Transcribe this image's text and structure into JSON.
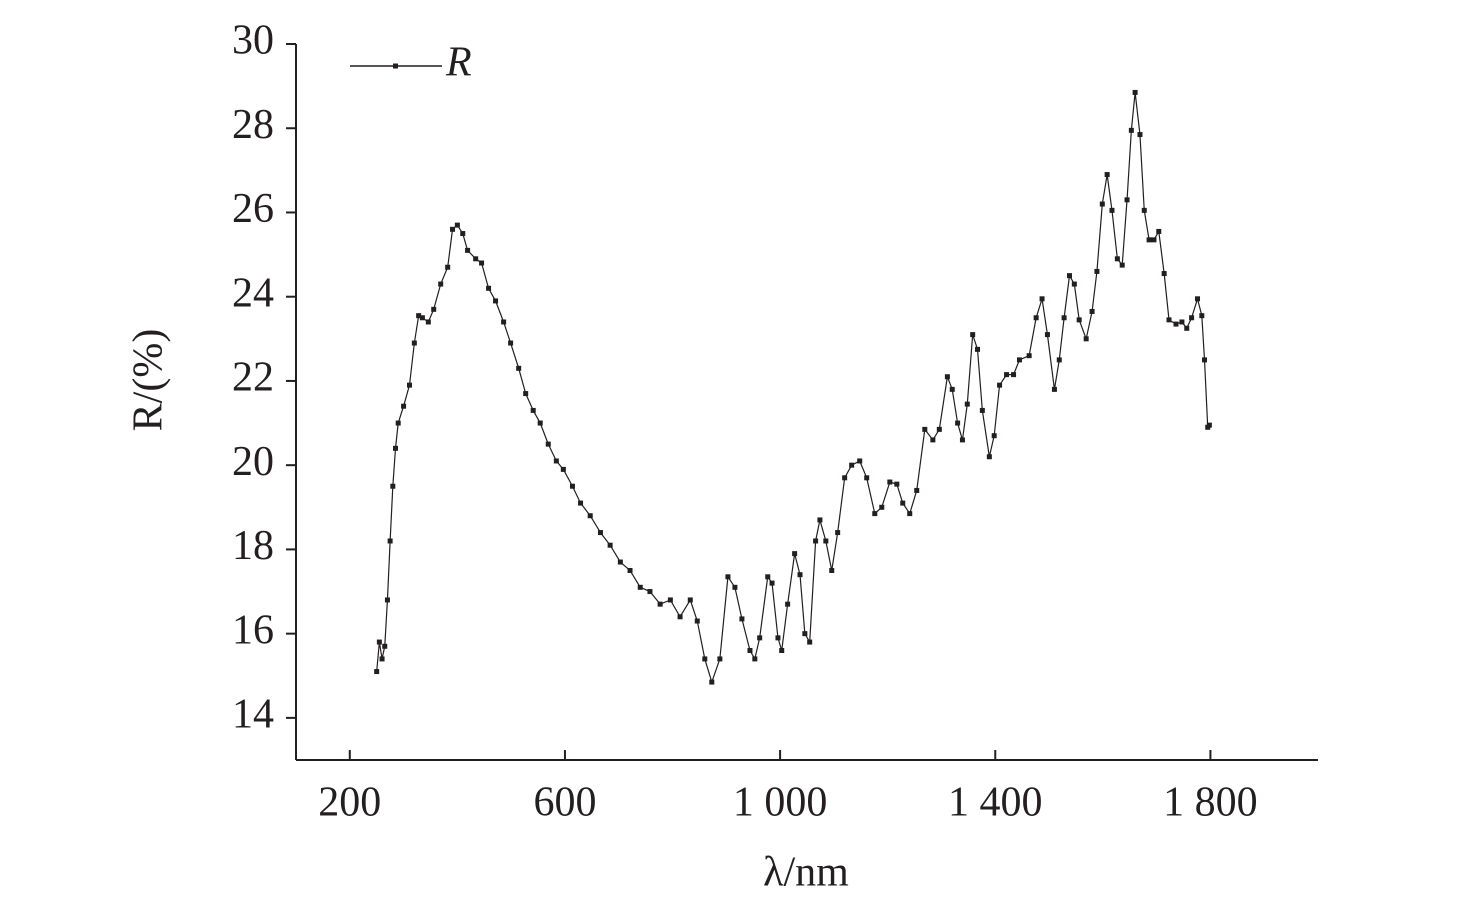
{
  "chart_data": {
    "type": "line",
    "x_label": "λ/nm",
    "y_label": "R/(%)",
    "xlim": [
      100,
      2000
    ],
    "ylim": [
      13,
      30
    ],
    "xticks": [
      200,
      600,
      {
        "value": 1000,
        "label": "1 000"
      },
      {
        "value": 1400,
        "label": "1 400"
      },
      {
        "value": 1800,
        "label": "1 800"
      }
    ],
    "yticks": [
      14,
      16,
      18,
      20,
      22,
      24,
      26,
      28,
      30
    ],
    "legend": "top-left",
    "series": [
      {
        "name": "R",
        "color": "#231f20",
        "x": [
          250,
          255,
          260,
          265,
          270,
          275,
          280,
          285,
          290,
          300,
          311,
          320,
          328,
          335,
          346,
          356,
          369,
          382,
          391,
          400,
          410,
          419,
          434,
          445,
          458,
          471,
          486,
          499,
          514,
          527,
          541,
          554,
          569,
          584,
          597,
          614,
          629,
          647,
          666,
          684,
          703,
          721,
          740,
          758,
          777,
          796,
          814,
          833,
          846,
          860,
          873,
          888,
          903,
          916,
          929,
          944,
          953,
          962,
          977,
          985,
          996,
          1003,
          1014,
          1027,
          1037,
          1046,
          1055,
          1066,
          1074,
          1085,
          1096,
          1107,
          1120,
          1133,
          1148,
          1161,
          1176,
          1189,
          1204,
          1217,
          1228,
          1241,
          1254,
          1269,
          1284,
          1296,
          1311,
          1320,
          1330,
          1339,
          1348,
          1358,
          1367,
          1376,
          1389,
          1398,
          1408,
          1421,
          1434,
          1445,
          1463,
          1476,
          1487,
          1497,
          1510,
          1519,
          1528,
          1538,
          1547,
          1556,
          1569,
          1580,
          1589,
          1599,
          1608,
          1617,
          1627,
          1636,
          1645,
          1653,
          1660,
          1669,
          1677,
          1686,
          1695,
          1704,
          1714,
          1723,
          1736,
          1747,
          1756,
          1765,
          1776,
          1784,
          1789,
          1795,
          1798
        ],
        "values": [
          15.1,
          15.8,
          15.4,
          15.7,
          16.8,
          18.2,
          19.5,
          20.4,
          21.0,
          21.4,
          21.9,
          22.9,
          23.55,
          23.5,
          23.4,
          23.7,
          24.3,
          24.7,
          25.6,
          25.7,
          25.5,
          25.1,
          24.9,
          24.8,
          24.2,
          23.9,
          23.4,
          22.9,
          22.3,
          21.7,
          21.3,
          21.0,
          20.5,
          20.1,
          19.9,
          19.5,
          19.1,
          18.8,
          18.4,
          18.1,
          17.7,
          17.5,
          17.1,
          17.0,
          16.7,
          16.8,
          16.4,
          16.8,
          16.3,
          15.4,
          14.85,
          15.4,
          17.35,
          17.1,
          16.35,
          15.6,
          15.4,
          15.9,
          17.35,
          17.2,
          15.9,
          15.6,
          16.7,
          17.9,
          17.4,
          16.0,
          15.8,
          18.2,
          18.7,
          18.2,
          17.5,
          18.4,
          19.7,
          20.0,
          20.1,
          19.7,
          18.85,
          19.0,
          19.6,
          19.55,
          19.1,
          18.85,
          19.4,
          20.85,
          20.6,
          20.85,
          22.1,
          21.8,
          21.0,
          20.6,
          21.45,
          23.1,
          22.75,
          21.3,
          20.2,
          20.7,
          21.9,
          22.15,
          22.15,
          22.5,
          22.6,
          23.5,
          23.95,
          23.1,
          21.8,
          22.5,
          23.5,
          24.5,
          24.3,
          23.45,
          23.0,
          23.65,
          24.6,
          26.2,
          26.9,
          26.05,
          24.9,
          24.75,
          26.3,
          27.95,
          28.85,
          27.85,
          26.05,
          25.35,
          25.35,
          25.55,
          24.55,
          23.45,
          23.35,
          23.4,
          23.25,
          23.5,
          23.95,
          23.55,
          22.5,
          20.9,
          20.95
        ]
      }
    ]
  }
}
